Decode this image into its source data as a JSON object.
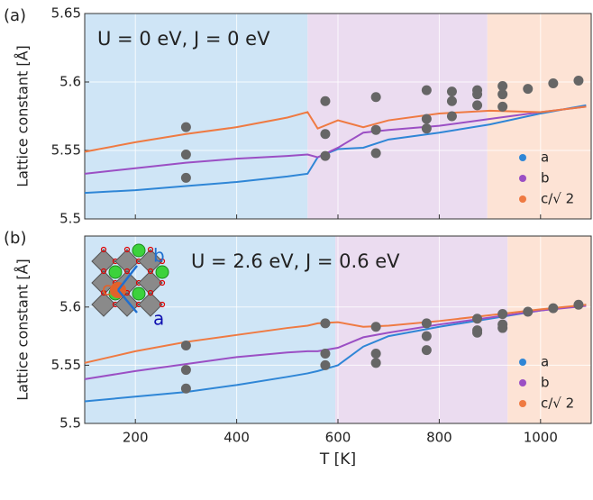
{
  "chart_data": [
    {
      "type": "line",
      "panel_label": "(a)",
      "annotation": "U = 0 eV, J = 0  eV",
      "ylabel": "Lattice constant [Å]",
      "xlim": [
        100,
        1100
      ],
      "xticks": [
        200,
        400,
        600,
        800,
        1000
      ],
      "ylim": [
        5.5,
        5.65
      ],
      "yticks": [
        5.5,
        5.55,
        5.6,
        5.65
      ],
      "grid": true,
      "regions": [
        {
          "range": [
            100,
            540
          ],
          "color": "#cfe5f6"
        },
        {
          "range": [
            540,
            895
          ],
          "color": "#ebdcf0"
        },
        {
          "range": [
            895,
            1100
          ],
          "color": "#fde3d5"
        }
      ],
      "x": [
        100,
        200,
        300,
        400,
        500,
        540,
        560,
        600,
        650,
        700,
        800,
        900,
        1000,
        1090
      ],
      "series": [
        {
          "name": "a",
          "color": "#2f86d6",
          "values": [
            5.519,
            5.521,
            5.524,
            5.527,
            5.531,
            5.533,
            5.545,
            5.551,
            5.552,
            5.558,
            5.563,
            5.569,
            5.577,
            5.583
          ]
        },
        {
          "name": "b",
          "color": "#9b4fc4",
          "values": [
            5.533,
            5.537,
            5.541,
            5.544,
            5.546,
            5.547,
            5.545,
            5.552,
            5.563,
            5.565,
            5.568,
            5.573,
            5.578,
            5.582
          ]
        },
        {
          "name": "c/√ 2",
          "color": "#ef7a42",
          "values": [
            5.549,
            5.556,
            5.562,
            5.567,
            5.574,
            5.578,
            5.566,
            5.572,
            5.567,
            5.572,
            5.577,
            5.579,
            5.578,
            5.582
          ]
        }
      ],
      "markers": {
        "color": "#666666",
        "x": [
          300,
          300,
          300,
          575,
          575,
          575,
          675,
          675,
          675,
          775,
          775,
          775,
          825,
          825,
          825,
          875,
          875,
          875,
          925,
          925,
          925,
          975,
          1025,
          1075
        ],
        "y": [
          5.567,
          5.547,
          5.53,
          5.586,
          5.562,
          5.546,
          5.589,
          5.565,
          5.548,
          5.594,
          5.573,
          5.566,
          5.593,
          5.586,
          5.575,
          5.594,
          5.583,
          5.591,
          5.597,
          5.591,
          5.582,
          5.595,
          5.599,
          5.601
        ]
      }
    },
    {
      "type": "line",
      "panel_label": "(b)",
      "annotation": "U = 2.6 eV, J = 0.6  eV",
      "ylabel": "Lattice constant [Å]",
      "xlabel": "T [K]",
      "inset_labels": [
        "c",
        "b",
        "a"
      ],
      "xlim": [
        100,
        1100
      ],
      "xticks": [
        200,
        400,
        600,
        800,
        1000
      ],
      "ylim": [
        5.5,
        5.661
      ],
      "yticks": [
        5.5,
        5.55,
        5.6
      ],
      "grid": true,
      "regions": [
        {
          "range": [
            100,
            595
          ],
          "color": "#cfe5f6"
        },
        {
          "range": [
            595,
            935
          ],
          "color": "#ebdcf0"
        },
        {
          "range": [
            935,
            1100
          ],
          "color": "#fde3d5"
        }
      ],
      "x": [
        100,
        200,
        300,
        400,
        500,
        540,
        560,
        600,
        650,
        700,
        800,
        900,
        1000,
        1090
      ],
      "series": [
        {
          "name": "a",
          "color": "#2f86d6",
          "values": [
            5.519,
            5.523,
            5.527,
            5.533,
            5.54,
            5.543,
            5.545,
            5.55,
            5.566,
            5.575,
            5.583,
            5.59,
            5.597,
            5.602
          ]
        },
        {
          "name": "b",
          "color": "#9b4fc4",
          "values": [
            5.538,
            5.545,
            5.551,
            5.557,
            5.561,
            5.562,
            5.562,
            5.565,
            5.574,
            5.578,
            5.585,
            5.591,
            5.597,
            5.601
          ]
        },
        {
          "name": "c/√ 2",
          "color": "#ef7a42",
          "values": [
            5.552,
            5.562,
            5.57,
            5.576,
            5.582,
            5.584,
            5.586,
            5.587,
            5.583,
            5.584,
            5.588,
            5.593,
            5.598,
            5.602
          ]
        }
      ],
      "markers": {
        "color": "#666666",
        "x": [
          300,
          300,
          300,
          575,
          575,
          575,
          675,
          675,
          675,
          775,
          775,
          775,
          875,
          875,
          875,
          925,
          925,
          925,
          975,
          1025,
          1075
        ],
        "y": [
          5.567,
          5.546,
          5.53,
          5.586,
          5.56,
          5.55,
          5.583,
          5.56,
          5.552,
          5.586,
          5.575,
          5.563,
          5.59,
          5.58,
          5.578,
          5.594,
          5.585,
          5.582,
          5.596,
          5.599,
          5.602
        ]
      }
    }
  ]
}
